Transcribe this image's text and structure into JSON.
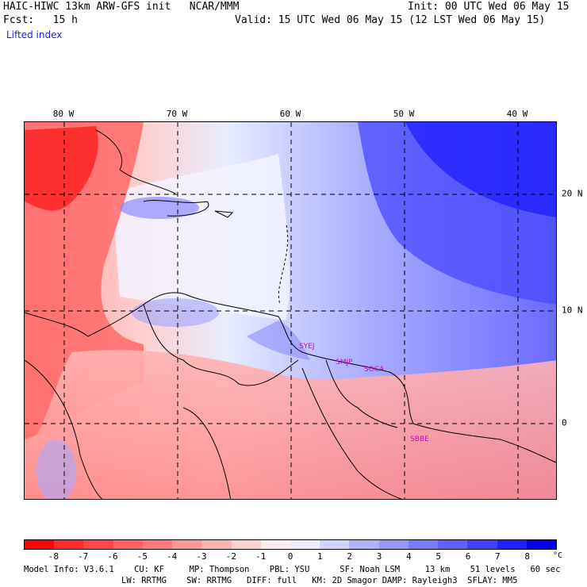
{
  "header": {
    "model_title": "HAIC-HIWC 13km ARW-GFS init   NCAR/MMM",
    "init_label": "Init: 00 UTC Wed 06 May 15",
    "fcst_label": "Fcst:   15 h",
    "valid_label": "Valid: 15 UTC Wed 06 May 15 (12 LST Wed 06 May 15)",
    "field_name": "Lifted index"
  },
  "map": {
    "lon_labels": [
      "80 W",
      "70 W",
      "60 W",
      "50 W",
      "40 W"
    ],
    "lat_labels": [
      "20 N",
      "10 N",
      "0"
    ],
    "stations": [
      "SYEJ",
      "SMJP",
      "SOCA",
      "SBBE"
    ],
    "colors": {
      "negative": "#ff2a2a",
      "positive": "#1a1aff",
      "neutral": "#ffffff"
    }
  },
  "colorbar": {
    "ticks": [
      "-8",
      "-7",
      "-6",
      "-5",
      "-4",
      "-3",
      "-2",
      "-1",
      "0",
      "1",
      "2",
      "3",
      "4",
      "5",
      "6",
      "7",
      "8"
    ],
    "unit": "°C",
    "colors": [
      "#ff0000",
      "#ff2a2a",
      "#ff4646",
      "#ff6060",
      "#ff7a7a",
      "#ff9696",
      "#ffb2b2",
      "#ffd2d2",
      "#ffecec",
      "#ececff",
      "#d2d2ff",
      "#b2b2ff",
      "#9696ff",
      "#7a7aff",
      "#6060ff",
      "#4040ff",
      "#2020ff",
      "#0000ee"
    ]
  },
  "footer": {
    "line1": "Model Info: V3.6.1    CU: KF     MP: Thompson    PBL: YSU      SF: Noah LSM     13 km    51 levels   60 sec",
    "line2": "LW: RRTMG    SW: RRTMG   DIFF: full   KM: 2D Smagor DAMP: Rayleigh3  SFLAY: MM5"
  }
}
